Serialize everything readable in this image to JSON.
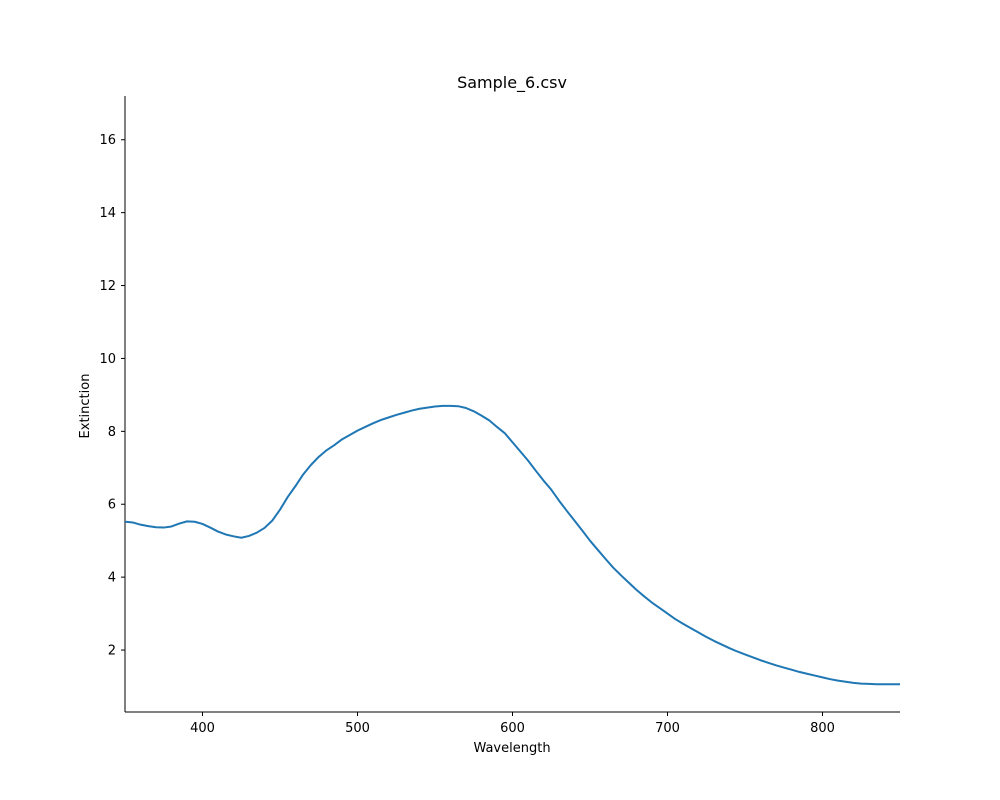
{
  "chart_data": {
    "type": "line",
    "title": "Sample_6.csv",
    "xlabel": "Wavelength",
    "ylabel": "Extinction",
    "xlim": [
      350,
      850
    ],
    "ylim": [
      0.3,
      17.2
    ],
    "xticks": [
      400,
      500,
      600,
      700,
      800
    ],
    "yticks": [
      2,
      4,
      6,
      8,
      10,
      12,
      14,
      16
    ],
    "grid": false,
    "line_color": "#1f77b4",
    "series": [
      {
        "x": [
          350,
          355,
          360,
          365,
          370,
          375,
          380,
          385,
          390,
          395,
          400,
          405,
          410,
          415,
          420,
          425,
          430,
          435,
          440,
          445,
          450,
          455,
          460,
          465,
          470,
          475,
          480,
          485,
          490,
          495,
          500,
          505,
          510,
          515,
          520,
          525,
          530,
          535,
          540,
          545,
          550,
          555,
          560,
          565,
          570,
          575,
          580,
          585,
          590,
          595,
          600,
          605,
          610,
          615,
          620,
          625,
          630,
          635,
          640,
          645,
          650,
          655,
          660,
          665,
          670,
          675,
          680,
          685,
          690,
          695,
          700,
          705,
          710,
          715,
          720,
          725,
          730,
          735,
          740,
          745,
          750,
          755,
          760,
          765,
          770,
          775,
          780,
          785,
          790,
          795,
          800,
          805,
          810,
          815,
          820,
          825,
          830,
          835,
          840,
          845,
          850
        ],
        "values": [
          5.52,
          5.5,
          5.44,
          5.4,
          5.37,
          5.36,
          5.39,
          5.47,
          5.53,
          5.52,
          5.46,
          5.36,
          5.25,
          5.17,
          5.12,
          5.08,
          5.13,
          5.22,
          5.35,
          5.55,
          5.85,
          6.2,
          6.5,
          6.82,
          7.08,
          7.3,
          7.48,
          7.62,
          7.78,
          7.9,
          8.02,
          8.12,
          8.22,
          8.31,
          8.38,
          8.45,
          8.51,
          8.57,
          8.62,
          8.65,
          8.68,
          8.7,
          8.7,
          8.69,
          8.64,
          8.55,
          8.43,
          8.3,
          8.12,
          7.95,
          7.7,
          7.45,
          7.2,
          6.92,
          6.65,
          6.4,
          6.1,
          5.82,
          5.55,
          5.28,
          5.0,
          4.75,
          4.5,
          4.26,
          4.05,
          3.85,
          3.65,
          3.47,
          3.3,
          3.15,
          3.0,
          2.85,
          2.72,
          2.6,
          2.48,
          2.36,
          2.25,
          2.15,
          2.05,
          1.96,
          1.88,
          1.8,
          1.72,
          1.65,
          1.58,
          1.52,
          1.46,
          1.4,
          1.35,
          1.3,
          1.25,
          1.2,
          1.16,
          1.13,
          1.1,
          1.08,
          1.07,
          1.06,
          1.06,
          1.06,
          1.06
        ]
      }
    ]
  }
}
